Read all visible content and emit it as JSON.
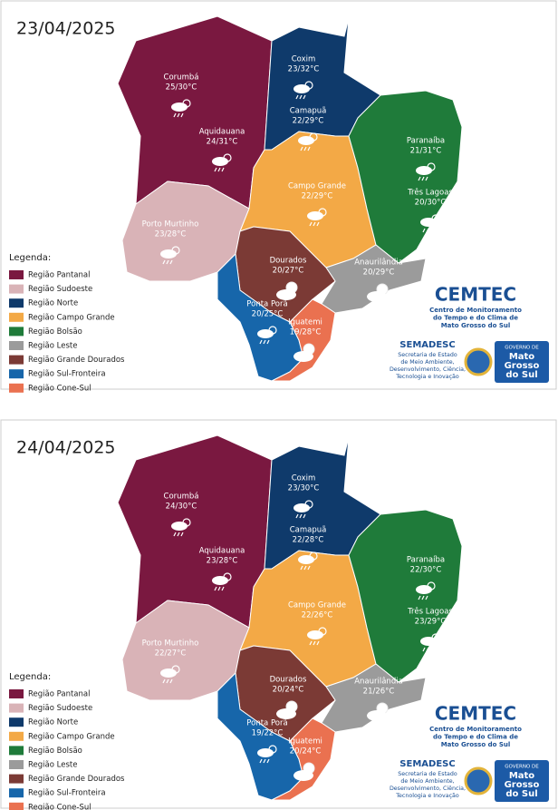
{
  "panels": [
    {
      "date": "23/04/2025",
      "cities": [
        {
          "name": "Corumbá",
          "temp": "25/30°C"
        },
        {
          "name": "Aquidauana",
          "temp": "24/31°C"
        },
        {
          "name": "Coxim",
          "temp": "23/32°C"
        },
        {
          "name": "Camapuã",
          "temp": "22/29°C"
        },
        {
          "name": "Paranaíba",
          "temp": "21/31°C"
        },
        {
          "name": "Três Lagoas",
          "temp": "20/30°C"
        },
        {
          "name": "Campo Grande",
          "temp": "22/29°C"
        },
        {
          "name": "Porto Murtinho",
          "temp": "23/28°C"
        },
        {
          "name": "Dourados",
          "temp": "20/27°C"
        },
        {
          "name": "Anaurilândia",
          "temp": "20/29°C"
        },
        {
          "name": "Ponta Porã",
          "temp": "20/25°C"
        },
        {
          "name": "Iguatemi",
          "temp": "19/28°C"
        }
      ]
    },
    {
      "date": "24/04/2025",
      "cities": [
        {
          "name": "Corumbá",
          "temp": "24/30°C"
        },
        {
          "name": "Aquidauana",
          "temp": "23/28°C"
        },
        {
          "name": "Coxim",
          "temp": "23/30°C"
        },
        {
          "name": "Camapuã",
          "temp": "22/28°C"
        },
        {
          "name": "Paranaíba",
          "temp": "22/30°C"
        },
        {
          "name": "Três Lagoas",
          "temp": "23/29°C"
        },
        {
          "name": "Campo Grande",
          "temp": "22/26°C"
        },
        {
          "name": "Porto Murtinho",
          "temp": "22/27°C"
        },
        {
          "name": "Dourados",
          "temp": "20/24°C"
        },
        {
          "name": "Anaurilândia",
          "temp": "21/26°C"
        },
        {
          "name": "Ponta Porã",
          "temp": "19/22°C"
        },
        {
          "name": "Iguatemi",
          "temp": "20/24°C"
        }
      ]
    }
  ],
  "legend": {
    "title": "Legenda:",
    "items": [
      {
        "label": "Região Pantanal",
        "color": "#7a1840"
      },
      {
        "label": "Região Sudoeste",
        "color": "#d9b3b7"
      },
      {
        "label": "Região Norte",
        "color": "#0f3a6b"
      },
      {
        "label": "Região Campo Grande",
        "color": "#f3a946"
      },
      {
        "label": "Região Bolsão",
        "color": "#1f7b3a"
      },
      {
        "label": "Região Leste",
        "color": "#9b9b9b"
      },
      {
        "label": "Região Grande Dourados",
        "color": "#7b3a35"
      },
      {
        "label": "Região Sul-Fronteira",
        "color": "#1766aa"
      },
      {
        "label": "Região Cone-Sul",
        "color": "#ea7150"
      }
    ]
  },
  "branding": {
    "cemtec": {
      "title": "CEMTEC",
      "lines": [
        "Centro de Monitoramento",
        "do Tempo e do Clima de",
        "Mato Grosso do Sul"
      ]
    },
    "semadesc": {
      "title": "SEMADESC",
      "lines": [
        "Secretaria de Estado",
        "de Meio Ambiente,",
        "Desenvolvimento, Ciência,",
        "Tecnologia e Inovação"
      ]
    },
    "governo": {
      "top": "GOVERNO DE",
      "lines": [
        "Mato",
        "Grosso",
        "do Sul"
      ]
    }
  }
}
